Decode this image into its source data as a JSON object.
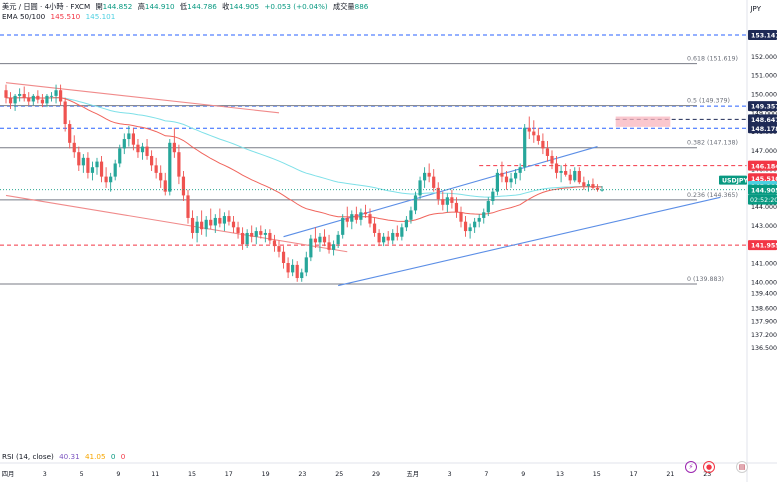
{
  "header": {
    "symbol": "美元 / 日圓 · 4小時 · FXCM",
    "open_label": "開",
    "open_value": "144.852",
    "high_label": "高",
    "high_value": "144.910",
    "low_label": "低",
    "low_value": "144.786",
    "close_label": "收",
    "close_value": "144.905",
    "change": "+0.053 (+0.04%)",
    "volume_label": "成交量",
    "volume_value": "886",
    "ema_label": "EMA 50/100",
    "ema50_value": "145.510",
    "ema100_value": "145.101",
    "currency": "JPY"
  },
  "rsi": {
    "label": "RSI (14, close)",
    "value1": "40.31",
    "value2": "41.05",
    "value3": "0",
    "value4": "0"
  },
  "colors": {
    "up": "#26a69a",
    "down": "#ef5350",
    "ema50": "#f0645c",
    "ema100": "#7ee0e8",
    "blue_line": "#5b8ee6",
    "level_blue": "#2962ff",
    "level_red": "#f23645",
    "label_navy": "#1e2a56",
    "label_red": "#f23645",
    "last_price": "#089981",
    "fib": "#6b6f79"
  },
  "chart_data": {
    "type": "candlestick",
    "x_axis_labels": [
      "四月",
      "3",
      "5",
      "9",
      "11",
      "15",
      "17",
      "19",
      "23",
      "25",
      "29",
      "五月",
      "3",
      "7",
      "9",
      "13",
      "15",
      "17",
      "21",
      "23"
    ],
    "y_axis_ticks": [
      "153.000",
      "152.000",
      "151.000",
      "150.000",
      "149.000",
      "148.000",
      "147.000",
      "146.000",
      "145.000",
      "144.000",
      "143.000",
      "142.000",
      "141.000",
      "140.000",
      "139.400",
      "138.600",
      "137.900",
      "137.200",
      "136.500"
    ],
    "y_range": [
      136.2,
      153.7
    ],
    "levels": [
      {
        "price": 153.141,
        "label": "153.141",
        "style": "dashed",
        "color": "blue",
        "x_from_bar": 0
      },
      {
        "price": 149.357,
        "label": "149.357",
        "style": "dashed",
        "color": "blue",
        "x_from_bar": 0
      },
      {
        "price": 148.647,
        "label": "148.647",
        "style": "dashed",
        "color": "navy",
        "x_from_bar": 134
      },
      {
        "price": 148.178,
        "label": "148.178",
        "style": "dashed",
        "color": "blue",
        "x_from_bar": 0
      },
      {
        "price": 146.184,
        "label": "146.184",
        "style": "dashed",
        "color": "red",
        "x_from_bar": 104
      },
      {
        "price": 141.955,
        "label": "141.955",
        "style": "dashed",
        "color": "red",
        "x_from_bar": 0
      }
    ],
    "fibonacci": [
      {
        "ratio": "0.618",
        "price": 151.619,
        "label": "0.618 (151.619)"
      },
      {
        "ratio": "0.5",
        "price": 149.379,
        "label": "0.5 (149.379)"
      },
      {
        "ratio": "0.382",
        "price": 147.138,
        "label": "0.382 (147.138)"
      },
      {
        "ratio": "0.236",
        "price": 144.365,
        "label": "0.236 (144.365)"
      },
      {
        "ratio": "0",
        "price": 139.883,
        "label": "0 (139.883)"
      }
    ],
    "price_labels": [
      {
        "price": 145.51,
        "label": "145.510",
        "kind": "ema50"
      },
      {
        "price": 145.101,
        "label": "145.101",
        "kind": "ema100"
      },
      {
        "price": 144.905,
        "label": "144.905",
        "kind": "last"
      }
    ],
    "last_price_tag": {
      "symbol": "USDJPY",
      "countdown": "02:52:20"
    },
    "supply_zone": {
      "from_bar": 134,
      "to_bar": 146,
      "top": 148.8,
      "bottom": 148.25
    },
    "trendlines": [
      {
        "name": "red-descending-1",
        "color": "red",
        "from": [
          0,
          150.6
        ],
        "to": [
          60,
          149.0
        ]
      },
      {
        "name": "red-descending-2",
        "color": "red",
        "from": [
          0,
          144.6
        ],
        "to": [
          75,
          141.6
        ]
      },
      {
        "name": "blue-lower-channel",
        "color": "blue",
        "from": [
          73,
          139.8
        ],
        "to": [
          157,
          144.5
        ]
      },
      {
        "name": "blue-upper-channel",
        "color": "blue",
        "from": [
          61,
          142.4
        ],
        "to": [
          130,
          147.2
        ]
      }
    ],
    "candles": [
      [
        150.2,
        150.5,
        149.5,
        149.8
      ],
      [
        149.8,
        150.1,
        149.2,
        149.5
      ],
      [
        149.5,
        150.0,
        149.1,
        149.9
      ],
      [
        149.9,
        150.3,
        149.6,
        150.0
      ],
      [
        150.0,
        150.4,
        149.6,
        149.8
      ],
      [
        149.8,
        150.1,
        149.4,
        149.6
      ],
      [
        149.6,
        150.0,
        149.4,
        149.9
      ],
      [
        149.9,
        150.2,
        149.5,
        149.7
      ],
      [
        149.7,
        150.0,
        149.3,
        149.5
      ],
      [
        149.5,
        150.0,
        149.3,
        149.9
      ],
      [
        149.9,
        150.1,
        149.6,
        149.9
      ],
      [
        149.9,
        150.5,
        149.5,
        150.2
      ],
      [
        150.2,
        150.5,
        149.4,
        149.6
      ],
      [
        149.6,
        149.8,
        148.0,
        148.4
      ],
      [
        148.4,
        148.6,
        147.1,
        147.4
      ],
      [
        147.4,
        147.8,
        146.6,
        146.9
      ],
      [
        146.9,
        147.2,
        145.9,
        146.2
      ],
      [
        146.2,
        146.8,
        145.8,
        146.6
      ],
      [
        146.6,
        146.9,
        145.5,
        145.8
      ],
      [
        145.8,
        146.4,
        145.4,
        146.1
      ],
      [
        146.1,
        146.6,
        145.7,
        146.4
      ],
      [
        146.4,
        146.7,
        145.3,
        145.6
      ],
      [
        145.6,
        146.1,
        145.0,
        145.3
      ],
      [
        145.3,
        145.8,
        144.8,
        145.6
      ],
      [
        145.6,
        146.5,
        145.4,
        146.3
      ],
      [
        146.3,
        147.3,
        146.1,
        147.1
      ],
      [
        147.1,
        147.9,
        146.8,
        147.6
      ],
      [
        147.6,
        148.3,
        147.2,
        147.9
      ],
      [
        147.9,
        148.2,
        147.0,
        147.3
      ],
      [
        147.3,
        147.6,
        146.6,
        146.9
      ],
      [
        146.9,
        147.4,
        146.5,
        147.2
      ],
      [
        147.2,
        147.6,
        146.5,
        146.7
      ],
      [
        146.7,
        147.0,
        145.9,
        146.2
      ],
      [
        146.2,
        146.6,
        145.5,
        145.8
      ],
      [
        145.8,
        146.2,
        145.0,
        145.4
      ],
      [
        145.4,
        145.8,
        144.6,
        144.8
      ],
      [
        144.8,
        147.6,
        144.6,
        147.4
      ],
      [
        147.4,
        148.2,
        146.6,
        146.9
      ],
      [
        146.9,
        147.3,
        145.2,
        145.6
      ],
      [
        145.6,
        145.9,
        144.3,
        144.6
      ],
      [
        144.6,
        144.9,
        143.1,
        143.4
      ],
      [
        143.4,
        143.8,
        142.3,
        142.6
      ],
      [
        142.6,
        143.5,
        142.1,
        143.2
      ],
      [
        143.2,
        143.8,
        142.5,
        142.8
      ],
      [
        142.8,
        143.5,
        142.4,
        143.3
      ],
      [
        143.3,
        143.9,
        142.8,
        143.0
      ],
      [
        143.0,
        143.6,
        142.6,
        143.4
      ],
      [
        143.4,
        143.9,
        142.9,
        143.1
      ],
      [
        143.1,
        143.7,
        142.7,
        143.5
      ],
      [
        143.5,
        143.8,
        143.0,
        143.2
      ],
      [
        143.2,
        143.5,
        142.6,
        142.9
      ],
      [
        142.9,
        143.2,
        142.3,
        142.6
      ],
      [
        142.6,
        142.9,
        141.7,
        142.0
      ],
      [
        142.0,
        142.8,
        141.8,
        142.6
      ],
      [
        142.6,
        143.0,
        142.1,
        142.4
      ],
      [
        142.4,
        142.9,
        142.0,
        142.7
      ],
      [
        142.7,
        143.0,
        142.3,
        142.5
      ],
      [
        142.5,
        142.8,
        142.1,
        142.6
      ],
      [
        142.6,
        142.8,
        142.0,
        142.2
      ],
      [
        142.2,
        142.5,
        141.6,
        141.9
      ],
      [
        141.9,
        142.2,
        141.3,
        141.6
      ],
      [
        141.6,
        141.9,
        140.7,
        141.0
      ],
      [
        141.0,
        141.3,
        140.2,
        140.5
      ],
      [
        140.5,
        141.2,
        140.3,
        140.9
      ],
      [
        140.9,
        141.1,
        140.0,
        140.2
      ],
      [
        140.2,
        140.7,
        140.0,
        140.5
      ],
      [
        140.5,
        141.6,
        140.3,
        141.3
      ],
      [
        141.3,
        142.5,
        141.1,
        142.3
      ],
      [
        142.3,
        142.9,
        141.8,
        142.1
      ],
      [
        142.1,
        142.6,
        141.6,
        142.4
      ],
      [
        142.4,
        142.8,
        141.9,
        142.1
      ],
      [
        142.1,
        142.5,
        141.5,
        141.7
      ],
      [
        141.7,
        142.2,
        141.4,
        142.0
      ],
      [
        142.0,
        142.7,
        141.8,
        142.5
      ],
      [
        142.5,
        143.6,
        142.3,
        143.4
      ],
      [
        143.4,
        144.0,
        142.9,
        143.2
      ],
      [
        143.2,
        143.8,
        142.8,
        143.6
      ],
      [
        143.6,
        144.0,
        143.1,
        143.3
      ],
      [
        143.3,
        143.9,
        143.0,
        143.7
      ],
      [
        143.7,
        144.1,
        143.4,
        143.6
      ],
      [
        143.6,
        143.9,
        142.9,
        143.1
      ],
      [
        143.1,
        143.4,
        142.4,
        142.6
      ],
      [
        142.6,
        142.8,
        141.9,
        142.1
      ],
      [
        142.1,
        142.6,
        141.9,
        142.4
      ],
      [
        142.4,
        142.7,
        142.0,
        142.2
      ],
      [
        142.2,
        142.8,
        142.0,
        142.6
      ],
      [
        142.6,
        143.0,
        142.2,
        142.4
      ],
      [
        142.4,
        143.1,
        142.2,
        142.9
      ],
      [
        142.9,
        143.5,
        142.7,
        143.3
      ],
      [
        143.3,
        144.0,
        143.1,
        143.8
      ],
      [
        143.8,
        144.8,
        143.6,
        144.6
      ],
      [
        144.6,
        145.6,
        144.4,
        145.4
      ],
      [
        145.4,
        146.1,
        145.0,
        145.8
      ],
      [
        145.8,
        146.3,
        145.3,
        145.6
      ],
      [
        145.6,
        146.0,
        144.8,
        145.0
      ],
      [
        145.0,
        145.3,
        144.1,
        144.4
      ],
      [
        144.4,
        144.8,
        143.8,
        144.1
      ],
      [
        144.1,
        144.7,
        143.7,
        144.5
      ],
      [
        144.5,
        144.9,
        143.9,
        144.2
      ],
      [
        144.2,
        144.5,
        143.4,
        143.7
      ],
      [
        143.7,
        144.0,
        142.9,
        143.2
      ],
      [
        143.2,
        143.5,
        142.4,
        142.7
      ],
      [
        142.7,
        143.1,
        142.3,
        142.9
      ],
      [
        142.9,
        143.4,
        142.6,
        143.2
      ],
      [
        143.2,
        143.6,
        142.9,
        143.4
      ],
      [
        143.4,
        143.9,
        143.1,
        143.7
      ],
      [
        143.7,
        144.5,
        143.5,
        144.3
      ],
      [
        144.3,
        145.0,
        144.1,
        144.8
      ],
      [
        144.8,
        146.0,
        144.6,
        145.8
      ],
      [
        145.8,
        146.4,
        145.3,
        145.6
      ],
      [
        145.6,
        145.9,
        144.9,
        145.3
      ],
      [
        145.3,
        145.8,
        145.0,
        145.5
      ],
      [
        145.5,
        146.0,
        145.2,
        145.8
      ],
      [
        145.8,
        146.3,
        145.4,
        146.1
      ],
      [
        146.1,
        148.4,
        145.9,
        148.2
      ],
      [
        148.2,
        148.8,
        147.6,
        148.0
      ],
      [
        148.0,
        148.6,
        147.4,
        147.8
      ],
      [
        147.8,
        148.2,
        147.3,
        147.5
      ],
      [
        147.5,
        147.9,
        146.8,
        147.1
      ],
      [
        147.1,
        147.5,
        146.4,
        146.7
      ],
      [
        146.7,
        147.0,
        146.0,
        146.3
      ],
      [
        146.3,
        146.7,
        145.5,
        145.8
      ],
      [
        145.8,
        146.2,
        145.3,
        145.9
      ],
      [
        145.9,
        146.3,
        145.6,
        145.7
      ],
      [
        145.7,
        146.0,
        145.2,
        145.4
      ],
      [
        145.4,
        146.1,
        145.3,
        145.9
      ],
      [
        145.9,
        146.1,
        145.2,
        145.3
      ],
      [
        145.3,
        145.6,
        144.9,
        145.1
      ],
      [
        145.1,
        145.4,
        144.8,
        145.2
      ],
      [
        145.2,
        145.5,
        144.9,
        145.0
      ],
      [
        145.0,
        145.2,
        144.8,
        144.9
      ],
      [
        144.9,
        145.1,
        144.8,
        144.9
      ]
    ]
  }
}
